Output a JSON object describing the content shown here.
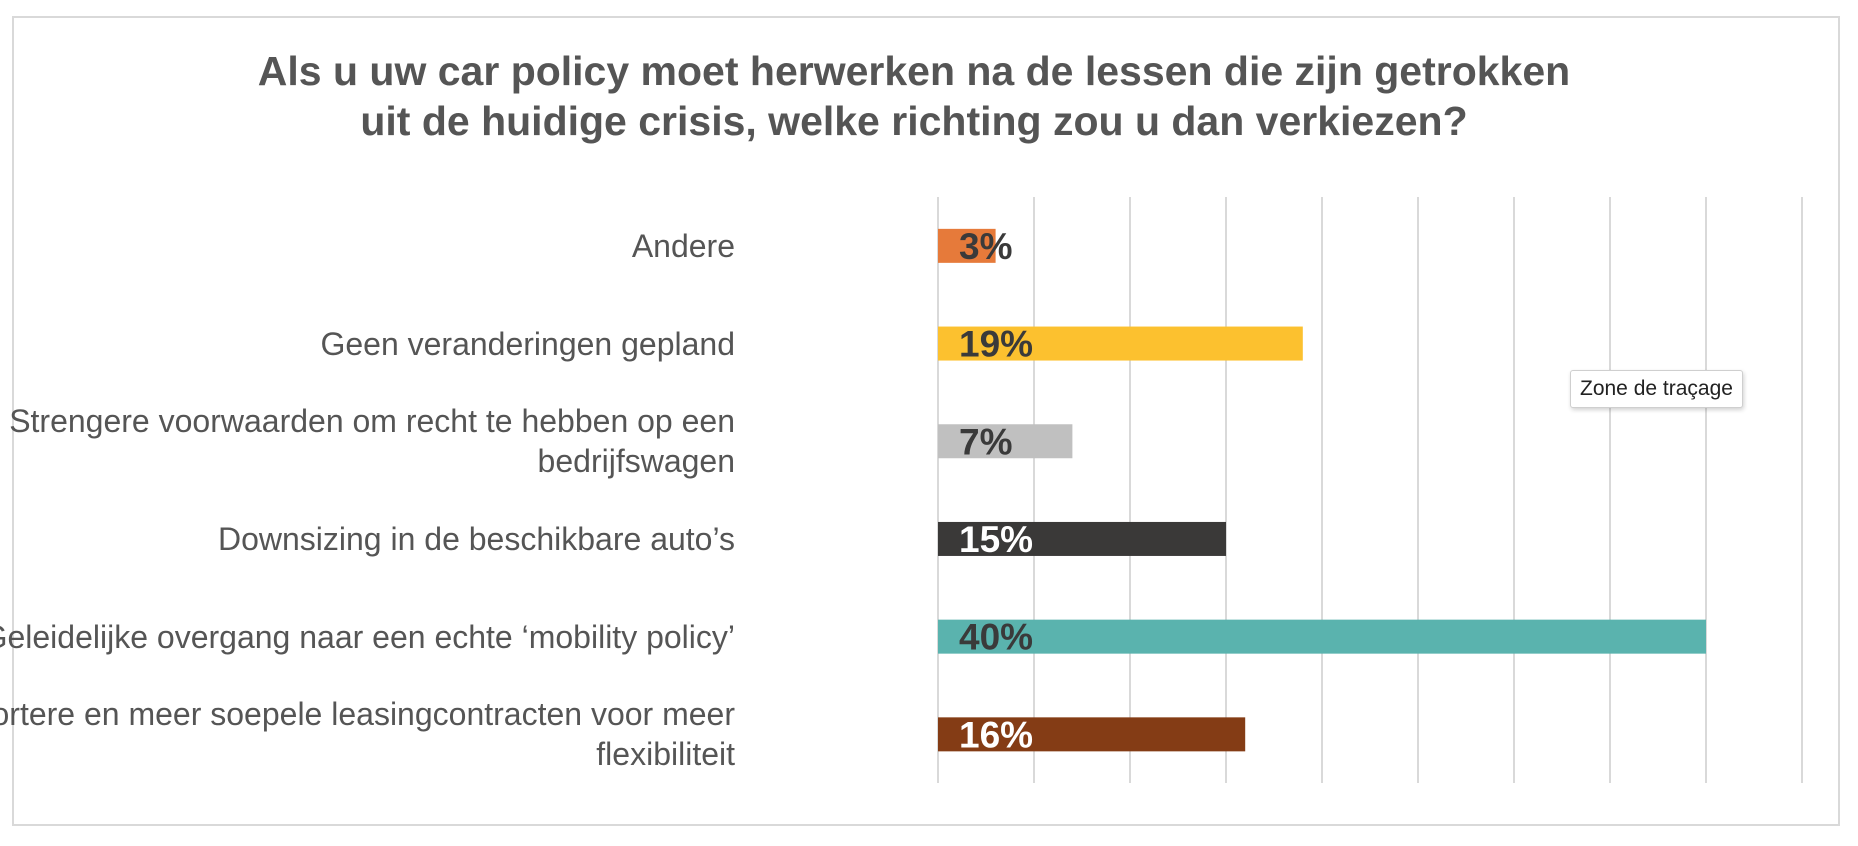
{
  "chart_data": {
    "type": "bar",
    "orientation": "horizontal",
    "title": [
      "Als u uw car policy moet herwerken na de lessen die zijn getrokken",
      "uit de huidige crisis, welke richting zou u dan verkiezen?"
    ],
    "categories": [
      [
        "Andere"
      ],
      [
        "Geen veranderingen gepland"
      ],
      [
        "Strengere voorwaarden om recht te hebben op een",
        "bedrijfswagen"
      ],
      [
        "Downsizing in de beschikbare auto’s"
      ],
      [
        "Geleidelijke overgang naar een echte ‘mobility policy’"
      ],
      [
        "Kortere en meer soepele leasingcontracten voor meer",
        "flexibiliteit"
      ]
    ],
    "values": [
      3,
      19,
      7,
      15,
      40,
      16
    ],
    "data_labels": [
      "3%",
      "19%",
      "7%",
      "15%",
      "40%",
      "16%"
    ],
    "bar_colors": [
      "#E67A3A",
      "#FCC12F",
      "#C0C0C0",
      "#3A3938",
      "#5AB3AE",
      "#843C15"
    ],
    "label_colors": [
      "#3a3a3a",
      "#3a3a3a",
      "#3a3a3a",
      "#ffffff",
      "#3a3a3a",
      "#ffffff"
    ],
    "xlim": [
      0,
      45
    ],
    "grid": true,
    "legend": "none",
    "xlabel": "",
    "ylabel": ""
  },
  "tooltip": {
    "text": "Zone de traçage"
  }
}
